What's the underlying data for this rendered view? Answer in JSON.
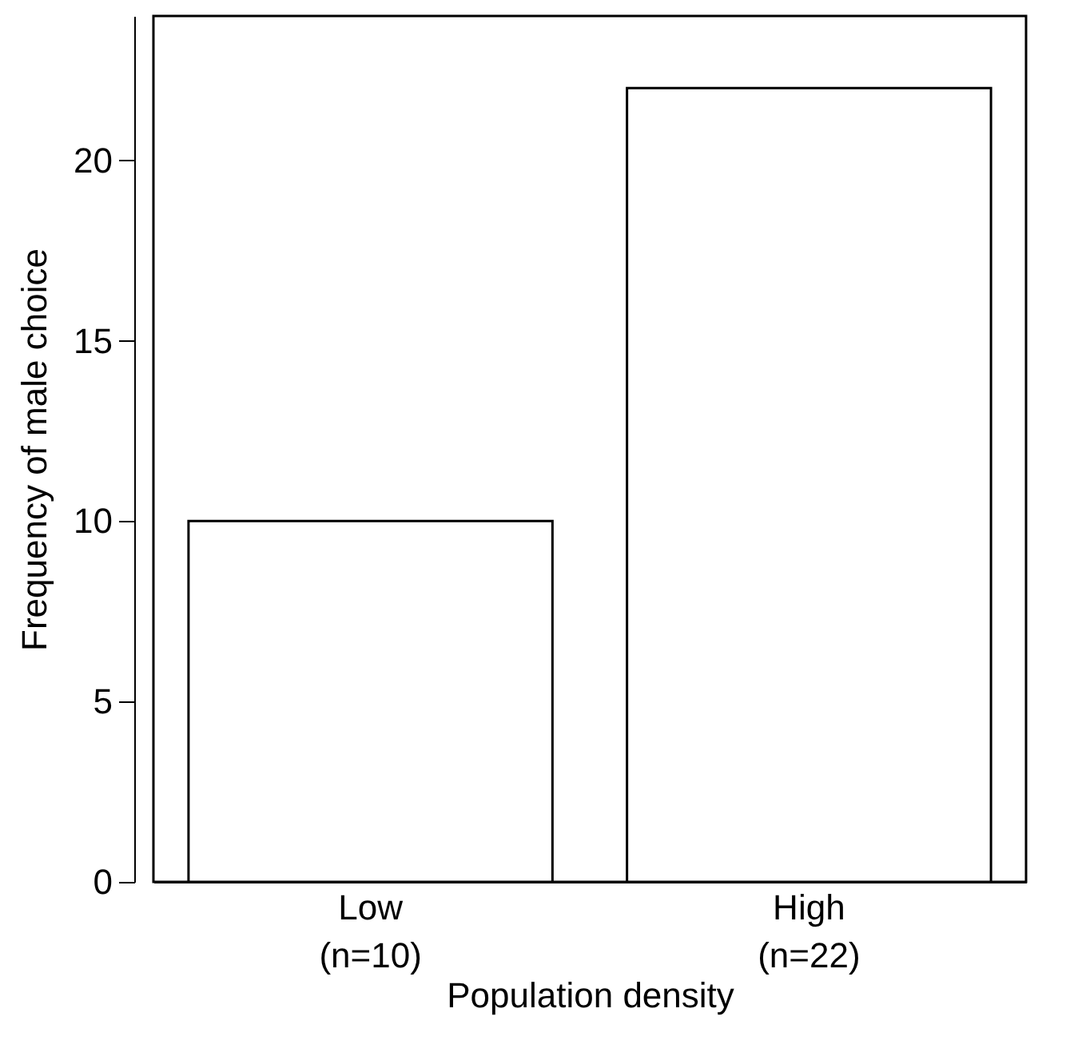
{
  "chart_data": {
    "type": "bar",
    "xlabel": "Population density",
    "ylabel": "Frequency of male choice",
    "categories": [
      "Low\n(n=10)",
      "High\n(n=22)"
    ],
    "values": [
      10,
      22
    ],
    "color": "#ffffff",
    "ylim": [
      0,
      24
    ],
    "yticks": [
      0,
      5,
      10,
      15,
      20
    ],
    "grid": false
  }
}
